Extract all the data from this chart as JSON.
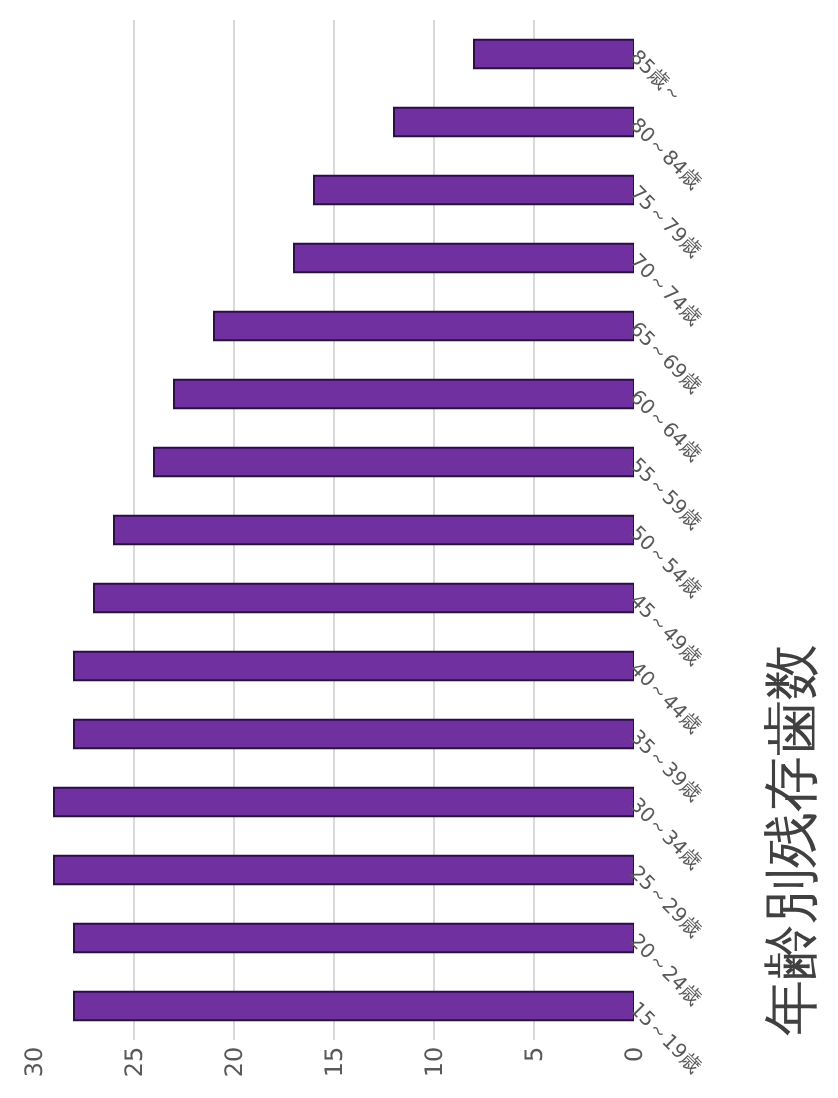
{
  "chart_data": {
    "type": "bar",
    "orientation": "horizontal",
    "title": "年齢別残存歯数",
    "categories": [
      "85歳～",
      "80～84歳",
      "75～79歳",
      "70～74歳",
      "65～69歳",
      "60～64歳",
      "55～59歳",
      "50～54歳",
      "45～49歳",
      "40～44歳",
      "35～39歳",
      "30～34歳",
      "25～29歳",
      "20～24歳",
      "15～19歳"
    ],
    "values": [
      8,
      12,
      16,
      17,
      21,
      23,
      24,
      26,
      27,
      28,
      28,
      29,
      29,
      28,
      28
    ],
    "color": "#7030a0",
    "xlim": [
      30,
      0
    ],
    "xticks": [
      0,
      5,
      10,
      15,
      20,
      25,
      30
    ],
    "grid": "x"
  }
}
